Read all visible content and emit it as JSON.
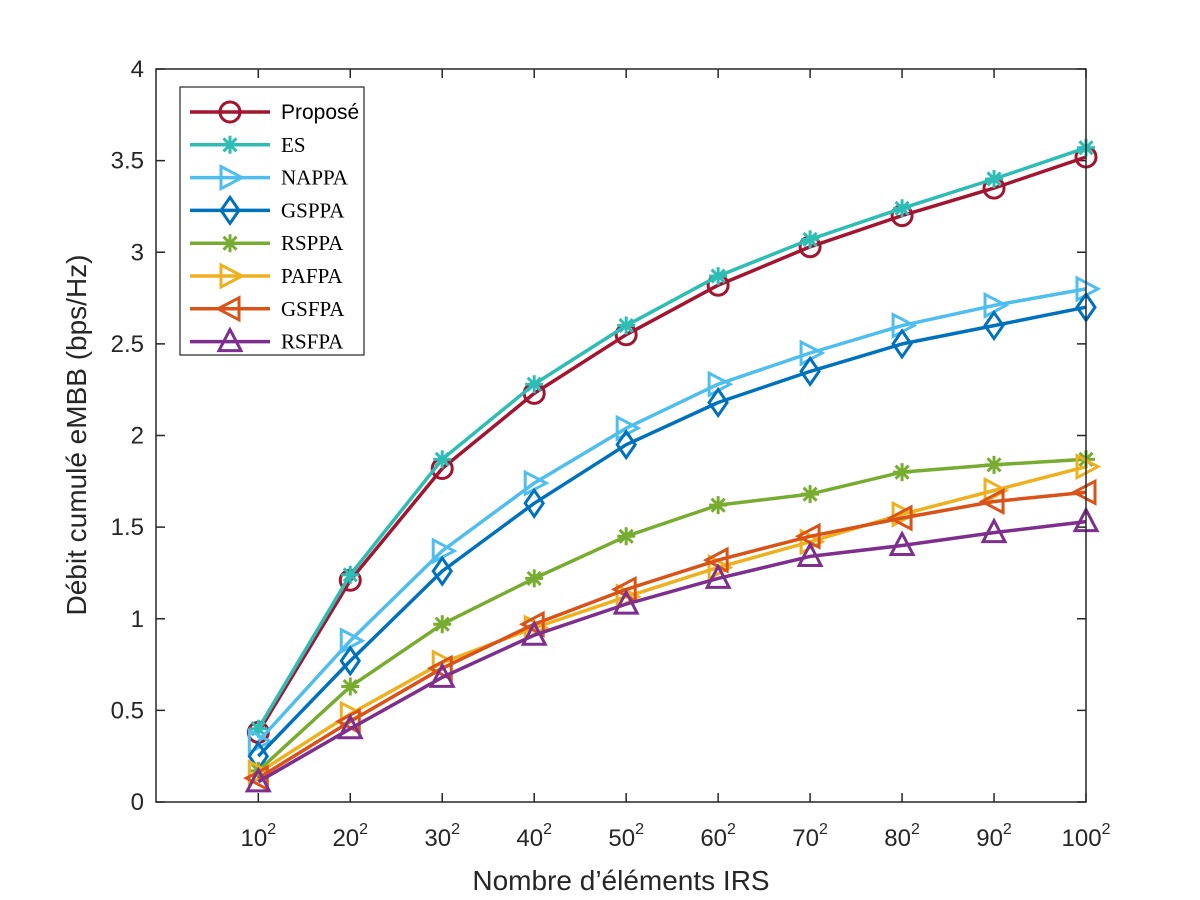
{
  "chart_data": {
    "type": "line",
    "xlabel": "Nombre d’éléments IRS",
    "ylabel": "Débit cumulé eMBB (bps/Hz)",
    "ylim": [
      0,
      4
    ],
    "yticks": [
      "0",
      "0.5",
      "1",
      "1.5",
      "2",
      "2.5",
      "3",
      "3.5",
      "4"
    ],
    "categories": [
      {
        "base": "10",
        "exp": "2"
      },
      {
        "base": "20",
        "exp": "2"
      },
      {
        "base": "30",
        "exp": "2"
      },
      {
        "base": "40",
        "exp": "2"
      },
      {
        "base": "50",
        "exp": "2"
      },
      {
        "base": "60",
        "exp": "2"
      },
      {
        "base": "70",
        "exp": "2"
      },
      {
        "base": "80",
        "exp": "2"
      },
      {
        "base": "90",
        "exp": "2"
      },
      {
        "base": "100",
        "exp": "2"
      }
    ],
    "legend_position": "top-left",
    "series": [
      {
        "name": "Proposé",
        "marker": "circle",
        "color": "#A2142F",
        "values": [
          0.38,
          1.21,
          1.82,
          2.23,
          2.55,
          2.82,
          3.03,
          3.2,
          3.35,
          3.52
        ]
      },
      {
        "name": "ES",
        "marker": "asterisk",
        "color": "#2DBDB5",
        "values": [
          0.4,
          1.24,
          1.87,
          2.28,
          2.6,
          2.87,
          3.07,
          3.24,
          3.4,
          3.57
        ]
      },
      {
        "name": "NAPPA",
        "marker": "triangle-right",
        "color": "#4DBEEE",
        "values": [
          0.33,
          0.88,
          1.37,
          1.74,
          2.04,
          2.28,
          2.45,
          2.6,
          2.71,
          2.8
        ]
      },
      {
        "name": "GSPPA",
        "marker": "diamond",
        "color": "#0072BD",
        "values": [
          0.25,
          0.77,
          1.26,
          1.63,
          1.95,
          2.18,
          2.35,
          2.5,
          2.6,
          2.7
        ]
      },
      {
        "name": "RSPPA",
        "marker": "asterisk",
        "color": "#77AC30",
        "values": [
          0.17,
          0.63,
          0.97,
          1.22,
          1.45,
          1.62,
          1.68,
          1.8,
          1.84,
          1.87
        ]
      },
      {
        "name": "PAFPA",
        "marker": "triangle-right",
        "color": "#EDB120",
        "values": [
          0.16,
          0.48,
          0.76,
          0.95,
          1.12,
          1.28,
          1.42,
          1.57,
          1.7,
          1.83
        ]
      },
      {
        "name": "GSFPA",
        "marker": "triangle-left",
        "color": "#D95319",
        "values": [
          0.13,
          0.44,
          0.73,
          0.97,
          1.16,
          1.32,
          1.45,
          1.55,
          1.64,
          1.69
        ]
      },
      {
        "name": "RSFPA",
        "marker": "triangle-up",
        "color": "#7E2F8E",
        "values": [
          0.11,
          0.4,
          0.68,
          0.91,
          1.08,
          1.22,
          1.34,
          1.4,
          1.47,
          1.53
        ]
      }
    ]
  }
}
